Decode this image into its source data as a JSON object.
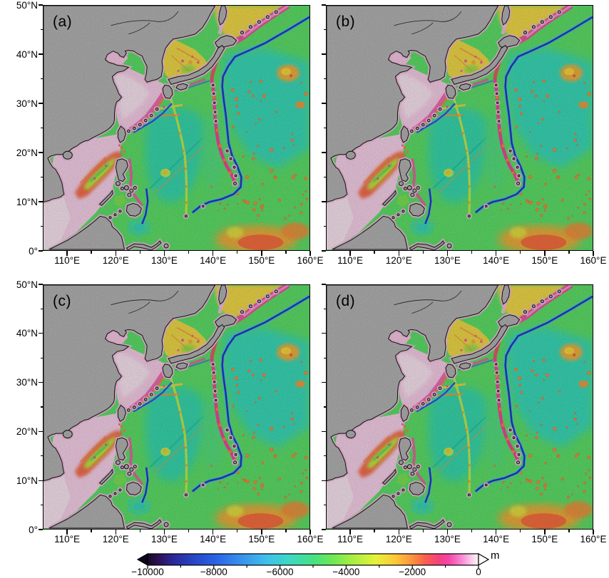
{
  "figure": {
    "panels": [
      {
        "id": "a",
        "label": "(a)"
      },
      {
        "id": "b",
        "label": "(b)"
      },
      {
        "id": "c",
        "label": "(c)"
      },
      {
        "id": "d",
        "label": "(d)"
      }
    ]
  },
  "axes": {
    "lat_labels": [
      "50°N",
      "40°N",
      "30°N",
      "20°N",
      "10°N",
      "0°"
    ],
    "lon_labels": [
      "110°E",
      "120°E",
      "130°E",
      "140°E",
      "150°E",
      "160°E"
    ],
    "lon_min": 105,
    "lon_max": 160,
    "lat_min": 0,
    "lat_max": 50,
    "major_step": 10,
    "minor_step": 5
  },
  "colorbar": {
    "unit": "m",
    "tick_labels": [
      "−10000",
      "−8000",
      "−6000",
      "−4000",
      "−2000",
      "0"
    ],
    "tick_values": [
      -10000,
      -8000,
      -6000,
      -4000,
      -2000,
      0
    ],
    "gradient": [
      {
        "t": 0.0,
        "c": "#160a24"
      },
      {
        "t": 0.03,
        "c": "#2a1150"
      },
      {
        "t": 0.07,
        "c": "#2b2590"
      },
      {
        "t": 0.13,
        "c": "#2741c0"
      },
      {
        "t": 0.2,
        "c": "#2a60e4"
      },
      {
        "t": 0.28,
        "c": "#3790ee"
      },
      {
        "t": 0.36,
        "c": "#3fc0ea"
      },
      {
        "t": 0.43,
        "c": "#3ed8c2"
      },
      {
        "t": 0.5,
        "c": "#46e184"
      },
      {
        "t": 0.56,
        "c": "#6fe854"
      },
      {
        "t": 0.62,
        "c": "#a8ee42"
      },
      {
        "t": 0.69,
        "c": "#e6f23a"
      },
      {
        "t": 0.75,
        "c": "#fcc738"
      },
      {
        "t": 0.8,
        "c": "#fb923e"
      },
      {
        "t": 0.84,
        "c": "#f95e4e"
      },
      {
        "t": 0.88,
        "c": "#f6417e"
      },
      {
        "t": 0.91,
        "c": "#f545a8"
      },
      {
        "t": 0.95,
        "c": "#f98ad4"
      },
      {
        "t": 0.98,
        "c": "#fcd0ec"
      },
      {
        "t": 1.0,
        "c": "#fef5fb"
      }
    ]
  },
  "map_colors": {
    "land_gray": "#b6b6b6",
    "coastline_black": "#141414",
    "shelf_pink": "#fbd2ec",
    "shallow_pale_pink": "#fde9f5",
    "basin_green": "#5fe26a",
    "deep_teal": "#36dab8",
    "trench_dark_blue": "#2034c4",
    "ridge_magenta": "#f6459e",
    "seamount_orange": "#f8983a",
    "marginal_sea_yellow": "#f2dc4a"
  }
}
